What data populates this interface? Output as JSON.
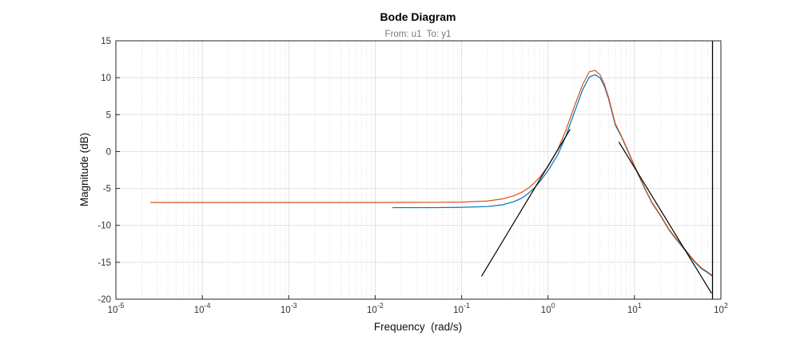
{
  "chart_data": {
    "type": "line",
    "title": "Bode Diagram",
    "subtitle": "From: u1  To: y1",
    "xlabel": "Frequency  (rad/s)",
    "ylabel": "Magnitude (dB)",
    "xscale": "log",
    "xlim": [
      1e-05,
      100
    ],
    "ylim": [
      -20,
      15
    ],
    "grid": true,
    "x_ticks": [
      {
        "value": 1e-05,
        "base": "10",
        "exp": "-5"
      },
      {
        "value": 0.0001,
        "base": "10",
        "exp": "-4"
      },
      {
        "value": 0.001,
        "base": "10",
        "exp": "-3"
      },
      {
        "value": 0.01,
        "base": "10",
        "exp": "-2"
      },
      {
        "value": 0.1,
        "base": "10",
        "exp": "-1"
      },
      {
        "value": 1,
        "base": "10",
        "exp": "0"
      },
      {
        "value": 10,
        "base": "10",
        "exp": "1"
      },
      {
        "value": 100,
        "base": "10",
        "exp": "2"
      }
    ],
    "y_ticks": [
      15,
      10,
      5,
      0,
      -5,
      -10,
      -15,
      -20
    ],
    "series": [
      {
        "color": "#0072BD",
        "x": [
          0.0158,
          0.05,
          0.1,
          0.2,
          0.3,
          0.4,
          0.5,
          0.6,
          0.7,
          0.8,
          1.0,
          1.3,
          1.6,
          2.0,
          2.5,
          3.0,
          3.5,
          4.0,
          4.5,
          5.0,
          6.0,
          7.0,
          8.0,
          10,
          13,
          16,
          20,
          25,
          30,
          40,
          50,
          60,
          70,
          80
        ],
        "y": [
          -7.6,
          -7.6,
          -7.55,
          -7.45,
          -7.2,
          -6.8,
          -6.3,
          -5.6,
          -4.9,
          -4.1,
          -2.6,
          -0.4,
          2.0,
          5.2,
          8.3,
          10.1,
          10.4,
          10.0,
          8.8,
          7.2,
          3.6,
          2.1,
          0.6,
          -2.0,
          -4.9,
          -7.0,
          -8.7,
          -10.6,
          -11.8,
          -13.6,
          -15.0,
          -15.9,
          -16.4,
          -16.9
        ]
      },
      {
        "color": "#D95319",
        "x": [
          2.51e-05,
          0.0001,
          0.001,
          0.01,
          0.05,
          0.1,
          0.2,
          0.3,
          0.4,
          0.5,
          0.6,
          0.7,
          0.8,
          1.0,
          1.3,
          1.6,
          2.0,
          2.5,
          3.0,
          3.5,
          4.0,
          4.5,
          5.0,
          6.0,
          7.0,
          8.0,
          10,
          13,
          16,
          20,
          25,
          30,
          40,
          50,
          60,
          70,
          80
        ],
        "y": [
          -6.9,
          -6.9,
          -6.9,
          -6.9,
          -6.88,
          -6.85,
          -6.7,
          -6.4,
          -6.0,
          -5.5,
          -4.9,
          -4.2,
          -3.5,
          -2.0,
          0.3,
          2.8,
          6.0,
          9.0,
          10.8,
          11.0,
          10.4,
          9.1,
          7.4,
          3.8,
          2.2,
          0.7,
          -1.9,
          -4.8,
          -6.9,
          -8.6,
          -10.5,
          -11.7,
          -13.5,
          -14.9,
          -15.8,
          -16.3,
          -16.8
        ]
      },
      {
        "color": "#000000",
        "x": [
          0.17,
          1.8
        ],
        "y": [
          -16.9,
          3.0
        ]
      },
      {
        "color": "#000000",
        "x": [
          6.6,
          78
        ],
        "y": [
          1.3,
          -19.2
        ]
      }
    ],
    "vertical_line_x": 80
  }
}
